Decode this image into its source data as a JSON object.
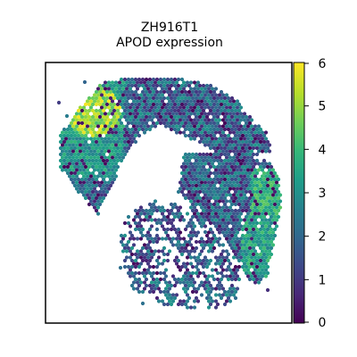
{
  "chart_data": {
    "type": "scatter",
    "subtype": "spatial-hexbin",
    "title": "ZH916T1",
    "subtitle": "APOD expression",
    "xlabel": "",
    "ylabel": "",
    "axes_ticks": false,
    "grid": false,
    "colorbar": {
      "label": "",
      "range": [
        0,
        6
      ],
      "ticks": [
        "0",
        "1",
        "2",
        "3",
        "4",
        "5",
        "6"
      ],
      "colormap": "viridis",
      "position": "right"
    },
    "colormap_stops": [
      "#440154",
      "#482878",
      "#3e4989",
      "#31688e",
      "#26828e",
      "#1f9e89",
      "#35b779",
      "#6ece58",
      "#b5de2b",
      "#fde725"
    ],
    "regions": [
      {
        "name": "upper-left lobe",
        "description_values": {
          "typical": 2.5,
          "max": 6.0
        }
      },
      {
        "name": "right lobe",
        "description_values": {
          "typical": 2.0,
          "max": 4.5
        }
      },
      {
        "name": "lower-center lobe",
        "description_values": {
          "typical": 2.2,
          "max": 4.0
        }
      }
    ]
  },
  "colors": {
    "axes_frame": "#000000",
    "background": "#ffffff"
  }
}
